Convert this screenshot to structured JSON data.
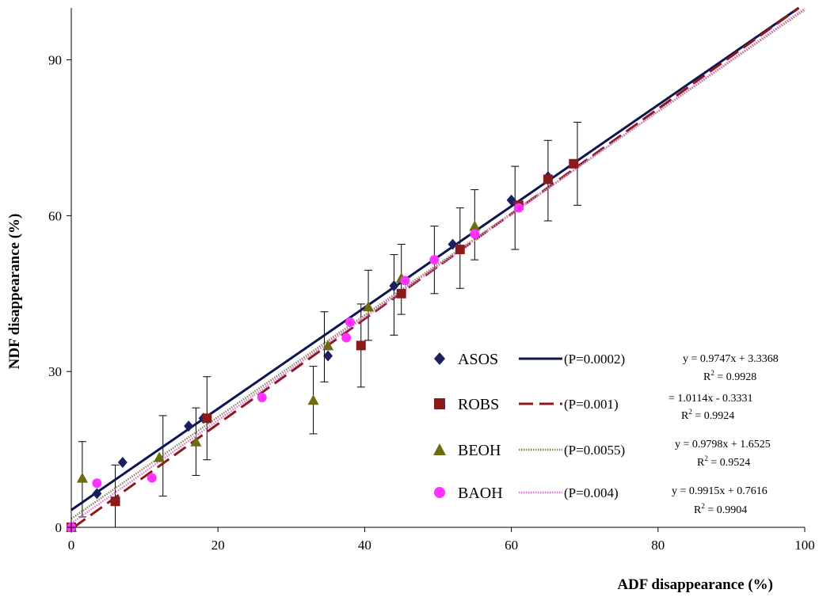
{
  "chart_data": {
    "type": "scatter",
    "title": "",
    "xlabel": "ADF disappearance (%)",
    "ylabel": "NDF disappearance (%)",
    "xlim": [
      0,
      100
    ],
    "ylim": [
      0,
      100
    ],
    "xticks": [
      0,
      20,
      40,
      60,
      80,
      100
    ],
    "yticks": [
      0,
      30,
      60,
      90
    ],
    "grid": false,
    "legend_position": "lower-right",
    "series": [
      {
        "name": "ASOS",
        "p_label": "(P=0.0002)",
        "marker": "diamond",
        "color": "#1b1f5e",
        "line_style": "solid",
        "line_color": "#0d1550",
        "equation": "y = 0.9747x + 3.3368",
        "r2_label": "R",
        "r2_value": " = 0.9928",
        "slope": 0.9747,
        "intercept": 3.3368,
        "points": [
          [
            0,
            0
          ],
          [
            3.5,
            6.5
          ],
          [
            7,
            12.5
          ],
          [
            16,
            19.5
          ],
          [
            18,
            21
          ],
          [
            35,
            33
          ],
          [
            44,
            46.5
          ],
          [
            52,
            54.5
          ],
          [
            60,
            63
          ],
          [
            65,
            67.5
          ]
        ]
      },
      {
        "name": "ROBS",
        "p_label": "(P=0.001)",
        "marker": "square",
        "color": "#8b1a1a",
        "line_style": "dashed",
        "line_color": "#8b1a1a",
        "equation": "= 1.0114x - 0.3331",
        "r2_label": "R",
        "r2_value": " = 0.9924",
        "slope": 1.0114,
        "intercept": -0.3331,
        "points": [
          [
            0,
            0
          ],
          [
            6,
            5
          ],
          [
            18.5,
            21
          ],
          [
            39.5,
            35
          ],
          [
            45,
            45
          ],
          [
            53,
            53.5
          ],
          [
            61,
            62
          ],
          [
            65,
            67
          ],
          [
            68.5,
            70
          ]
        ]
      },
      {
        "name": "BEOH",
        "p_label": "(P=0.0055)",
        "marker": "triangle",
        "color": "#6b6b10",
        "line_style": "dotted",
        "line_color": "#8a8a55",
        "equation": "y = 0.9798x + 1.6525",
        "r2_label": "R",
        "r2_value": " = 0.9524",
        "slope": 0.9798,
        "intercept": 1.6525,
        "points": [
          [
            0,
            0
          ],
          [
            1.5,
            9.5
          ],
          [
            12,
            13.5
          ],
          [
            17,
            16.5
          ],
          [
            33,
            24.5
          ],
          [
            35,
            35
          ],
          [
            40.5,
            42.5
          ],
          [
            45,
            48
          ],
          [
            55,
            58
          ]
        ]
      },
      {
        "name": "BAOH",
        "p_label": "(P=0.004)",
        "marker": "circle",
        "color": "#ff33ff",
        "line_style": "dotted",
        "line_color": "#e070e0",
        "equation": "y = 0.9915x + 0.7616",
        "r2_label": "R",
        "r2_value": " = 0.9904",
        "slope": 0.9915,
        "intercept": 0.7616,
        "points": [
          [
            0,
            0
          ],
          [
            3.5,
            8.5
          ],
          [
            11,
            9.5
          ],
          [
            26,
            25
          ],
          [
            37.5,
            36.5
          ],
          [
            38,
            39.5
          ],
          [
            45.5,
            47.5
          ],
          [
            49.5,
            51.5
          ],
          [
            55,
            56.5
          ],
          [
            61,
            61.5
          ]
        ]
      }
    ],
    "error_bars": [
      {
        "x": 1.5,
        "low": 2,
        "high": 16.5
      },
      {
        "x": 6,
        "low": 0,
        "high": 12
      },
      {
        "x": 12.5,
        "low": 6,
        "high": 21.5
      },
      {
        "x": 17,
        "low": 10,
        "high": 23
      },
      {
        "x": 18.5,
        "low": 13,
        "high": 29
      },
      {
        "x": 33,
        "low": 18,
        "high": 31
      },
      {
        "x": 34.5,
        "low": 28,
        "high": 41.5
      },
      {
        "x": 39.5,
        "low": 27,
        "high": 43
      },
      {
        "x": 40.5,
        "low": 36,
        "high": 49.5
      },
      {
        "x": 44,
        "low": 37,
        "high": 52.5
      },
      {
        "x": 45,
        "low": 41,
        "high": 54.5
      },
      {
        "x": 49.5,
        "low": 45,
        "high": 58
      },
      {
        "x": 53,
        "low": 46,
        "high": 61.5
      },
      {
        "x": 55,
        "low": 51.5,
        "high": 65
      },
      {
        "x": 60.5,
        "low": 53.5,
        "high": 69.5
      },
      {
        "x": 65,
        "low": 59,
        "high": 74.5
      },
      {
        "x": 69,
        "low": 62,
        "high": 78
      }
    ]
  }
}
